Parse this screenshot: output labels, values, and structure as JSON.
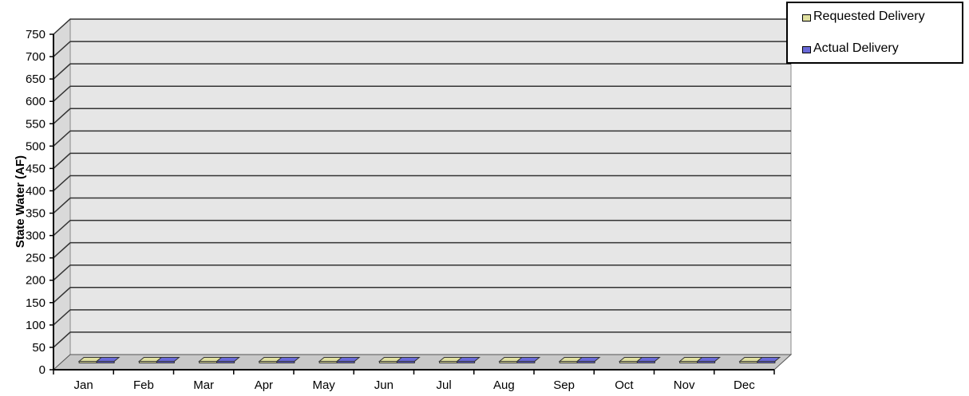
{
  "chart_data": {
    "type": "bar",
    "categories": [
      "Jan",
      "Feb",
      "Mar",
      "Apr",
      "May",
      "Jun",
      "Jul",
      "Aug",
      "Sep",
      "Oct",
      "Nov",
      "Dec"
    ],
    "series": [
      {
        "name": "Requested Delivery",
        "color": "#e0e0a0",
        "values": [
          0,
          0,
          0,
          0,
          0,
          0,
          0,
          0,
          0,
          0,
          0,
          0
        ]
      },
      {
        "name": "Actual Delivery",
        "color": "#6a6ad8",
        "values": [
          0,
          0,
          0,
          0,
          0,
          0,
          0,
          0,
          0,
          0,
          0,
          0
        ]
      }
    ],
    "title": "",
    "xlabel": "",
    "ylabel": "State Water (AF)",
    "ylim": [
      0,
      750
    ],
    "yticks": [
      0,
      50,
      100,
      150,
      200,
      250,
      300,
      350,
      400,
      450,
      500,
      550,
      600,
      650,
      700,
      750
    ],
    "grid": true,
    "legend_position": "top-right",
    "style": "3d",
    "wall_color": "#e6e6e6"
  }
}
